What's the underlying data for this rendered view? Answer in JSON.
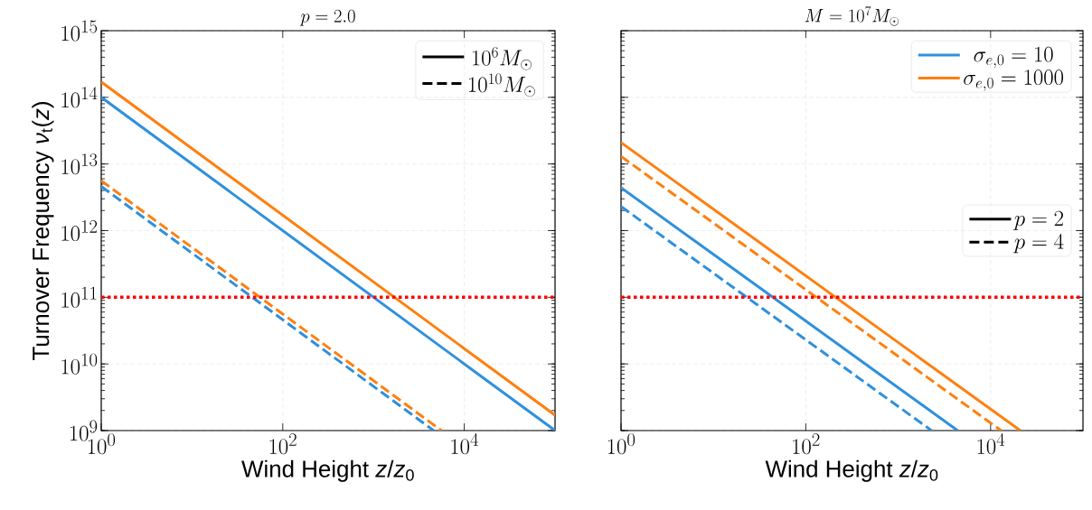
{
  "chart_data": [
    {
      "type": "line",
      "title": "p = 2.0",
      "xlabel": "Wind Height *z*/*z*$_{0}$",
      "ylabel": "Turnover Frequency *ν*$_{t}$(*z*)",
      "log": "xy",
      "grid": true,
      "legend": "top right",
      "xlim": [
        1,
        100000
      ],
      "ylim": [
        1000000000.0,
        1000000000000000.0
      ],
      "xticks": [
        {
          "value": 1,
          "label": "10^{0}"
        },
        {
          "value": 100,
          "label": "10^{2}"
        },
        {
          "value": 10000,
          "label": "10^{4}"
        }
      ],
      "yticks": [
        {
          "value": 1000000000.0,
          "label": "10^{9}"
        },
        {
          "value": 10000000000.0,
          "label": "10^{10}"
        },
        {
          "value": 100000000000.0,
          "label": "10^{11}"
        },
        {
          "value": 1000000000000.0,
          "label": "10^{12}"
        },
        {
          "value": 10000000000000.0,
          "label": "10^{13}"
        },
        {
          "value": 100000000000000.0,
          "label": "10^{14}"
        },
        {
          "value": 1000000000000000.0,
          "label": "10^{15}"
        }
      ],
      "ref_lines": [
        {
          "axis": "y",
          "value": 100000000000.0,
          "color": "#ff0000",
          "line_style": "dotted"
        }
      ],
      "series": [
        {
          "color": "#2e90dd",
          "line_style": "solid",
          "x": [
            1,
            100000
          ],
          "values": [
            100000000000000.0,
            1000000000.0
          ]
        },
        {
          "color": "#ff7f0e",
          "line_style": "solid",
          "x": [
            1,
            100000
          ],
          "values": [
            170000000000000.0,
            1700000000.0
          ]
        },
        {
          "color": "#2e90dd",
          "line_style": "dashed",
          "x": [
            1,
            4600
          ],
          "values": [
            4600000000000.0,
            1000000000.0
          ]
        },
        {
          "color": "#ff7f0e",
          "line_style": "dashed",
          "x": [
            1,
            5600
          ],
          "values": [
            5600000000000.0,
            1000000000.0
          ]
        },
        {
          "name": "10^{6} M_\\odot",
          "color": "#000000",
          "line_style": "solid",
          "values": [
            null
          ]
        },
        {
          "name": "10^{10} M_\\odot",
          "color": "#000000",
          "line_style": "dashed",
          "values": [
            null
          ]
        }
      ]
    },
    {
      "type": "line",
      "title": "M =10^{7} M_\\odot",
      "xlabel": "Wind Height *z*/*z*$_{0}$",
      "log": "xy",
      "grid": true,
      "legend": "top right",
      "tick_labels": "x",
      "xlim": [
        1,
        100000
      ],
      "ylim": [
        1000000000.0,
        1000000000000000.0
      ],
      "xticks": [
        {
          "value": 1,
          "label": "10^{0}"
        },
        {
          "value": 100,
          "label": "10^{2}"
        },
        {
          "value": 10000,
          "label": "10^{4}"
        }
      ],
      "yticks": [
        1000000000.0,
        10000000000.0,
        100000000000.0,
        1000000000000.0,
        10000000000000.0,
        100000000000000.0,
        1000000000000000.0
      ],
      "ref_lines": [
        {
          "axis": "y",
          "value": 100000000000.0,
          "color": "#ff0000",
          "line_style": "dotted"
        }
      ],
      "series": [
        {
          "name": "\\sigma_{e,0} = 10",
          "color": "#2e90dd",
          "line_style": "solid",
          "x": [
            1,
            4400
          ],
          "values": [
            4400000000000.0,
            1000000000.0
          ]
        },
        {
          "name": "\\sigma_{e,0} = 1000",
          "color": "#ff7f0e",
          "line_style": "solid",
          "x": [
            1,
            21000
          ],
          "values": [
            21000000000000.0,
            1000000000.0
          ]
        },
        {
          "color": "#2e90dd",
          "line_style": "dashed",
          "x": [
            1,
            2300
          ],
          "values": [
            2300000000000.0,
            1000000000.0
          ]
        },
        {
          "color": "#ff7f0e",
          "line_style": "dashed",
          "x": [
            1,
            13000
          ],
          "values": [
            13000000000000.0,
            1000000000.0
          ]
        },
        {
          "name": "p = 2",
          "color": "#000000",
          "line_style": "solid",
          "values": [
            null
          ]
        },
        {
          "name": "p = 4",
          "color": "#000000",
          "line_style": "dashed",
          "values": [
            null
          ]
        }
      ]
    }
  ]
}
